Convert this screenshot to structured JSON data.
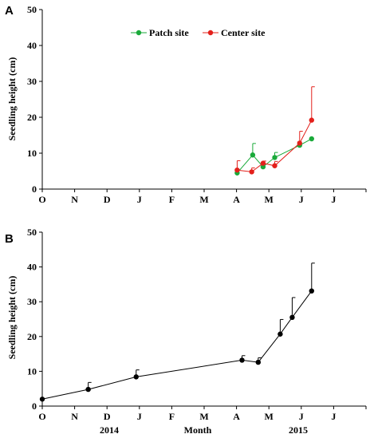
{
  "chart_data": [
    {
      "type": "line",
      "panel": "A",
      "ylabel": "Seedling height (cm)",
      "xlabel": "",
      "ylim": [
        0,
        50
      ],
      "yticks": [
        0,
        10,
        20,
        30,
        40,
        50
      ],
      "xlim": [
        0,
        10
      ],
      "x_tick_labels": [
        "O",
        "N",
        "D",
        "J",
        "F",
        "M",
        "A",
        "M",
        "J",
        "J"
      ],
      "legend_position": "top-center",
      "grid": false,
      "series": [
        {
          "name": "Patch site",
          "color": "#1aaa3a",
          "x": [
            6.02,
            6.5,
            6.82,
            7.18,
            7.95,
            8.32
          ],
          "y": [
            4.5,
            9.5,
            6.2,
            8.8,
            12.2,
            14.0
          ],
          "err": [
            0,
            3.2,
            0.8,
            1.4,
            0,
            0
          ]
        },
        {
          "name": "Center site",
          "color": "#e3201b",
          "x": [
            6.02,
            6.47,
            6.82,
            7.18,
            7.95,
            8.32
          ],
          "y": [
            5.3,
            4.8,
            7.2,
            6.5,
            12.8,
            19.2
          ],
          "err": [
            2.6,
            1.1,
            0.6,
            1.2,
            3.3,
            9.3
          ]
        }
      ]
    },
    {
      "type": "line",
      "panel": "B",
      "ylabel": "Seedling height (cm)",
      "xlabel": "Month",
      "year_labels": [
        "2014",
        "2015"
      ],
      "ylim": [
        0,
        50
      ],
      "yticks": [
        0,
        10,
        20,
        30,
        40,
        50
      ],
      "xlim": [
        0,
        10
      ],
      "x_tick_labels": [
        "O",
        "N",
        "D",
        "J",
        "F",
        "M",
        "A",
        "M",
        "J",
        "J"
      ],
      "grid": false,
      "series": [
        {
          "color": "#000000",
          "x": [
            0.0,
            1.42,
            2.9,
            6.17,
            6.67,
            7.35,
            7.72,
            8.32
          ],
          "y": [
            2.0,
            4.8,
            8.4,
            13.2,
            12.6,
            20.7,
            25.5,
            33.1
          ],
          "err": [
            0,
            2.0,
            2.0,
            1.3,
            1.3,
            4.2,
            5.7,
            8.0
          ]
        }
      ]
    }
  ]
}
